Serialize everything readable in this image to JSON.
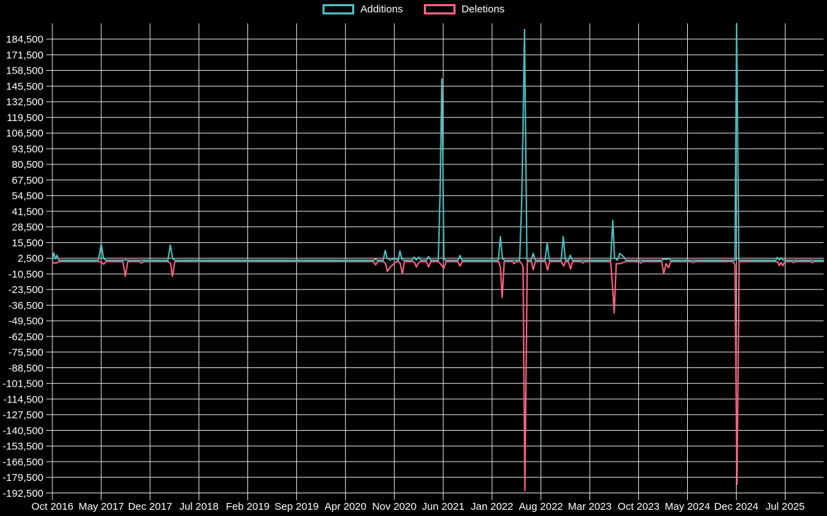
{
  "chart_data": {
    "type": "line",
    "title": "",
    "legend_position": "top",
    "grid": true,
    "background_color": "#000000",
    "grid_color": "#e6e6e6",
    "text_color": "#ffffff",
    "legend": [
      {
        "label": "Additions",
        "color": "#4bc0c0"
      },
      {
        "label": "Deletions",
        "color": "#ff6384"
      }
    ],
    "x_axis": {
      "unit": "months since Oct 2016",
      "range": [
        0,
        110.5
      ],
      "label_step_months": 7,
      "labels": [
        {
          "m": 0,
          "label": "Oct 2016"
        },
        {
          "m": 7,
          "label": "May 2017"
        },
        {
          "m": 14,
          "label": "Dec 2017"
        },
        {
          "m": 21,
          "label": "Jul 2018"
        },
        {
          "m": 28,
          "label": "Feb 2019"
        },
        {
          "m": 35,
          "label": "Sep 2019"
        },
        {
          "m": 42,
          "label": "Apr 2020"
        },
        {
          "m": 49,
          "label": "Nov 2020"
        },
        {
          "m": 56,
          "label": "Jun 2021"
        },
        {
          "m": 63,
          "label": "Jan 2022"
        },
        {
          "m": 70,
          "label": "Aug 2022"
        },
        {
          "m": 77,
          "label": "Mar 2023"
        },
        {
          "m": 84,
          "label": "Oct 2023"
        },
        {
          "m": 91,
          "label": "May 2024"
        },
        {
          "m": 98,
          "label": "Dec 2024"
        },
        {
          "m": 105,
          "label": "Jul 2025"
        }
      ]
    },
    "y_axis": {
      "range": [
        -194500,
        197600
      ],
      "tick_step": 13000,
      "ticks": [
        {
          "v": 184500,
          "label": "184,500"
        },
        {
          "v": 171500,
          "label": "171,500"
        },
        {
          "v": 158500,
          "label": "158,500"
        },
        {
          "v": 145500,
          "label": "145,500"
        },
        {
          "v": 132500,
          "label": "132,500"
        },
        {
          "v": 119500,
          "label": "119,500"
        },
        {
          "v": 106500,
          "label": "106,500"
        },
        {
          "v": 93500,
          "label": "93,500"
        },
        {
          "v": 80500,
          "label": "80,500"
        },
        {
          "v": 67500,
          "label": "67,500"
        },
        {
          "v": 54500,
          "label": "54,500"
        },
        {
          "v": 41500,
          "label": "41,500"
        },
        {
          "v": 28500,
          "label": "28,500"
        },
        {
          "v": 15500,
          "label": "15,500"
        },
        {
          "v": 2500,
          "label": "2,500"
        },
        {
          "v": -10500,
          "label": "-10,500"
        },
        {
          "v": -23500,
          "label": "-23,500"
        },
        {
          "v": -36500,
          "label": "-36,500"
        },
        {
          "v": -49500,
          "label": "-49,500"
        },
        {
          "v": -62500,
          "label": "-62,500"
        },
        {
          "v": -75500,
          "label": "-75,500"
        },
        {
          "v": -88500,
          "label": "-88,500"
        },
        {
          "v": -101500,
          "label": "-101,500"
        },
        {
          "v": -114500,
          "label": "-114,500"
        },
        {
          "v": -127500,
          "label": "-127,500"
        },
        {
          "v": -140500,
          "label": "-140,500"
        },
        {
          "v": -153500,
          "label": "-153,500"
        },
        {
          "v": -166500,
          "label": "-166,500"
        },
        {
          "v": -179500,
          "label": "-179,500"
        },
        {
          "v": -192500,
          "label": "-192,500"
        }
      ]
    },
    "series": [
      {
        "name": "Additions",
        "color": "#4bc0c0",
        "points": [
          [
            0,
            800
          ],
          [
            0.2,
            7000
          ],
          [
            0.45,
            2000
          ],
          [
            0.65,
            5000
          ],
          [
            0.95,
            800
          ],
          [
            6.6,
            800
          ],
          [
            7.0,
            14500
          ],
          [
            7.35,
            2000
          ],
          [
            7.7,
            800
          ],
          [
            10.1,
            800
          ],
          [
            10.45,
            1200
          ],
          [
            10.8,
            800
          ],
          [
            16.55,
            800
          ],
          [
            16.9,
            13500
          ],
          [
            17.25,
            2000
          ],
          [
            17.6,
            800
          ],
          [
            46.0,
            800
          ],
          [
            46.3,
            1800
          ],
          [
            46.6,
            800
          ],
          [
            47.4,
            800
          ],
          [
            47.7,
            9000
          ],
          [
            47.95,
            2500
          ],
          [
            48.4,
            1000
          ],
          [
            49.1,
            2500
          ],
          [
            49.45,
            800
          ],
          [
            49.55,
            800
          ],
          [
            49.8,
            8500
          ],
          [
            50.1,
            1500
          ],
          [
            50.4,
            800
          ],
          [
            51.55,
            800
          ],
          [
            51.85,
            3500
          ],
          [
            52.15,
            1000
          ],
          [
            52.5,
            3500
          ],
          [
            52.8,
            800
          ],
          [
            53.6,
            800
          ],
          [
            53.9,
            4000
          ],
          [
            54.2,
            800
          ],
          [
            55.3,
            800
          ],
          [
            55.55,
            55000
          ],
          [
            55.8,
            151500
          ],
          [
            56.1,
            1500
          ],
          [
            56.4,
            800
          ],
          [
            58.1,
            800
          ],
          [
            58.4,
            4800
          ],
          [
            58.7,
            800
          ],
          [
            63.9,
            800
          ],
          [
            64.2,
            20500
          ],
          [
            64.5,
            2000
          ],
          [
            64.8,
            800
          ],
          [
            66.95,
            800
          ],
          [
            67.25,
            49000
          ],
          [
            67.45,
            113000
          ],
          [
            67.65,
            192500
          ],
          [
            68.0,
            800
          ],
          [
            68.6,
            800
          ],
          [
            68.9,
            6500
          ],
          [
            69.2,
            800
          ],
          [
            70.6,
            800
          ],
          [
            70.9,
            15500
          ],
          [
            71.2,
            800
          ],
          [
            72.9,
            800
          ],
          [
            73.2,
            20500
          ],
          [
            73.5,
            800
          ],
          [
            73.95,
            800
          ],
          [
            74.2,
            5000
          ],
          [
            74.5,
            800
          ],
          [
            80.0,
            800
          ],
          [
            80.3,
            34000
          ],
          [
            80.55,
            3000
          ],
          [
            80.95,
            800
          ],
          [
            81.3,
            6500
          ],
          [
            81.9,
            3500
          ],
          [
            82.2,
            800
          ],
          [
            87.3,
            800
          ],
          [
            87.6,
            2000
          ],
          [
            87.95,
            1500
          ],
          [
            88.3,
            2200
          ],
          [
            88.6,
            800
          ],
          [
            97.8,
            800
          ],
          [
            98.05,
            197500
          ],
          [
            98.35,
            800
          ],
          [
            103.65,
            800
          ],
          [
            103.9,
            3200
          ],
          [
            104.15,
            1000
          ],
          [
            104.4,
            3000
          ],
          [
            104.65,
            1000
          ],
          [
            104.9,
            800
          ],
          [
            110.5,
            800
          ]
        ]
      },
      {
        "name": "Deletions",
        "color": "#ff6384",
        "points": [
          [
            0,
            -300
          ],
          [
            0.15,
            -1500
          ],
          [
            0.55,
            -1500
          ],
          [
            0.9,
            -300
          ],
          [
            6.65,
            -300
          ],
          [
            7.05,
            -800
          ],
          [
            7.35,
            -2500
          ],
          [
            7.7,
            -300
          ],
          [
            10.1,
            -300
          ],
          [
            10.45,
            -12500
          ],
          [
            10.8,
            -300
          ],
          [
            12.5,
            -300
          ],
          [
            12.75,
            -1500
          ],
          [
            13.0,
            -300
          ],
          [
            16.6,
            -300
          ],
          [
            16.95,
            -2000
          ],
          [
            17.2,
            -12500
          ],
          [
            17.55,
            -300
          ],
          [
            46.0,
            -300
          ],
          [
            46.3,
            -3000
          ],
          [
            46.6,
            -300
          ],
          [
            47.45,
            -300
          ],
          [
            47.75,
            -2000
          ],
          [
            48.0,
            -8500
          ],
          [
            48.4,
            -5000
          ],
          [
            49.1,
            -1000
          ],
          [
            49.45,
            -300
          ],
          [
            49.6,
            -300
          ],
          [
            49.85,
            -2000
          ],
          [
            50.15,
            -10500
          ],
          [
            50.45,
            -300
          ],
          [
            51.6,
            -300
          ],
          [
            51.9,
            -1000
          ],
          [
            52.15,
            -4800
          ],
          [
            52.5,
            -1000
          ],
          [
            52.8,
            -300
          ],
          [
            53.6,
            -300
          ],
          [
            53.9,
            -4800
          ],
          [
            54.2,
            -300
          ],
          [
            55.35,
            -300
          ],
          [
            55.85,
            -4000
          ],
          [
            56.1,
            -6000
          ],
          [
            56.4,
            -300
          ],
          [
            58.1,
            -300
          ],
          [
            58.4,
            -4000
          ],
          [
            58.7,
            -300
          ],
          [
            63.95,
            -300
          ],
          [
            64.2,
            -5000
          ],
          [
            64.45,
            -30000
          ],
          [
            64.75,
            -300
          ],
          [
            65.95,
            -300
          ],
          [
            66.15,
            -2000
          ],
          [
            66.4,
            -300
          ],
          [
            67.0,
            -300
          ],
          [
            67.3,
            -2500
          ],
          [
            67.45,
            -5000
          ],
          [
            67.7,
            -190800
          ],
          [
            68.05,
            -300
          ],
          [
            68.65,
            -300
          ],
          [
            68.9,
            -7000
          ],
          [
            69.2,
            -300
          ],
          [
            70.65,
            -300
          ],
          [
            70.95,
            -7500
          ],
          [
            71.25,
            -300
          ],
          [
            72.95,
            -300
          ],
          [
            73.25,
            -4000
          ],
          [
            73.55,
            -300
          ],
          [
            73.95,
            -300
          ],
          [
            74.25,
            -6500
          ],
          [
            74.55,
            -300
          ],
          [
            75.8,
            -300
          ],
          [
            76.0,
            -1500
          ],
          [
            76.25,
            -300
          ],
          [
            80.0,
            -300
          ],
          [
            80.3,
            -24000
          ],
          [
            80.5,
            -43000
          ],
          [
            80.8,
            -2000
          ],
          [
            81.35,
            -2000
          ],
          [
            81.9,
            -800
          ],
          [
            82.2,
            -300
          ],
          [
            84.1,
            -300
          ],
          [
            84.3,
            -1500
          ],
          [
            84.55,
            -300
          ],
          [
            87.3,
            -300
          ],
          [
            87.6,
            -10000
          ],
          [
            87.95,
            -2000
          ],
          [
            88.3,
            -5500
          ],
          [
            88.6,
            -300
          ],
          [
            91.6,
            -300
          ],
          [
            91.8,
            -1200
          ],
          [
            92.05,
            -300
          ],
          [
            97.55,
            -300
          ],
          [
            97.8,
            -3000
          ],
          [
            98.1,
            -185200
          ],
          [
            98.4,
            -300
          ],
          [
            103.65,
            -300
          ],
          [
            103.95,
            -800
          ],
          [
            104.15,
            -3600
          ],
          [
            104.4,
            -1000
          ],
          [
            104.65,
            -3800
          ],
          [
            104.95,
            -300
          ],
          [
            106.0,
            -300
          ],
          [
            106.2,
            -1200
          ],
          [
            106.45,
            -300
          ],
          [
            108.7,
            -300
          ],
          [
            108.9,
            -1200
          ],
          [
            109.15,
            -300
          ],
          [
            110.5,
            -300
          ]
        ]
      }
    ]
  }
}
